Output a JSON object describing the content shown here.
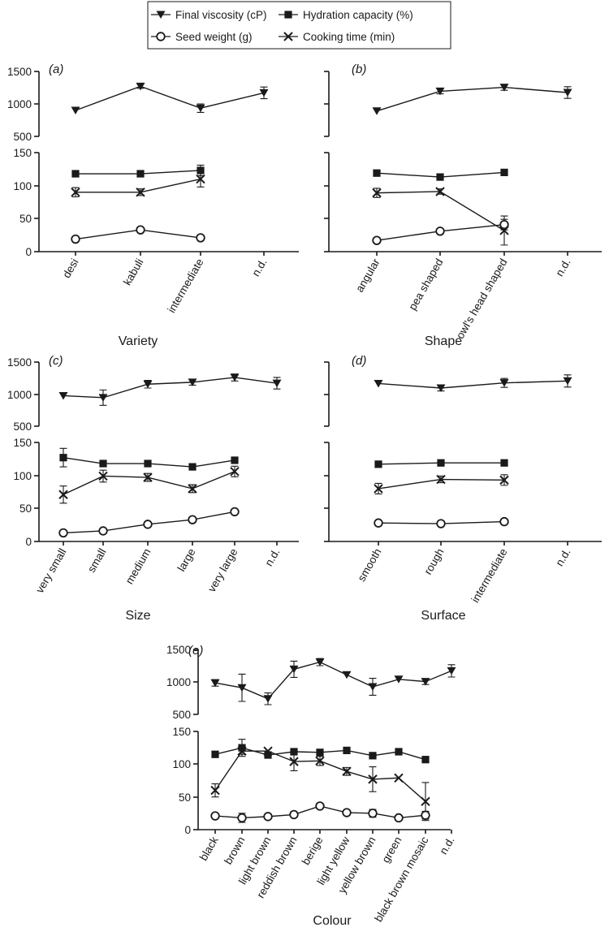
{
  "legend": [
    {
      "marker": "tri-down",
      "label": "Final viscosity (cP)"
    },
    {
      "marker": "square",
      "label": "Hydration capacity (%)"
    },
    {
      "marker": "circle",
      "label": "Seed weight (g)"
    },
    {
      "marker": "cross",
      "label": "Cooking time (min)"
    }
  ],
  "chart_data": [
    {
      "type": "line",
      "panel_label": "(a)",
      "xlabel": "Variety",
      "categories": [
        "desi",
        "kabuli",
        "intermediate",
        "n.d."
      ],
      "top_axis": {
        "ylim": [
          500,
          1500
        ],
        "ticks": [
          "500",
          "1000",
          "1500"
        ]
      },
      "bottom_axis": {
        "ylim": [
          0,
          150
        ],
        "ticks": [
          "0",
          "50",
          "100",
          "150"
        ]
      },
      "series": [
        {
          "name": "Final viscosity (cP)",
          "axis": "top",
          "values": [
            900,
            1270,
            935,
            1170
          ],
          "errors": [
            0,
            30,
            65,
            90
          ]
        },
        {
          "name": "Hydration capacity (%)",
          "axis": "bottom",
          "values": [
            118,
            118,
            123,
            null
          ],
          "errors": [
            0,
            0,
            8,
            0
          ]
        },
        {
          "name": "Cooking time (min)",
          "axis": "bottom",
          "values": [
            90,
            90,
            110,
            null
          ],
          "errors": [
            7,
            5,
            12,
            0
          ]
        },
        {
          "name": "Seed weight (g)",
          "axis": "bottom",
          "values": [
            19,
            33,
            21,
            null
          ],
          "errors": [
            0,
            0,
            0,
            0
          ]
        }
      ]
    },
    {
      "type": "line",
      "panel_label": "(b)",
      "xlabel": "Shape",
      "categories": [
        "angular",
        "pea shaped",
        "owl's head shaped",
        "n.d."
      ],
      "top_axis": {
        "ylim": [
          500,
          1500
        ],
        "ticks": [
          "",
          "",
          ""
        ]
      },
      "bottom_axis": {
        "ylim": [
          0,
          150
        ],
        "ticks": [
          "",
          "",
          "",
          ""
        ]
      },
      "series": [
        {
          "name": "Final viscosity (cP)",
          "axis": "top",
          "values": [
            890,
            1195,
            1255,
            1175
          ],
          "errors": [
            0,
            40,
            45,
            90
          ]
        },
        {
          "name": "Hydration capacity (%)",
          "axis": "bottom",
          "values": [
            119,
            113,
            120,
            null
          ],
          "errors": [
            0,
            0,
            0,
            0
          ]
        },
        {
          "name": "Cooking time (min)",
          "axis": "bottom",
          "values": [
            89,
            91,
            32,
            null
          ],
          "errors": [
            7,
            4,
            22,
            0
          ]
        },
        {
          "name": "Seed weight (g)",
          "axis": "bottom",
          "values": [
            17,
            31,
            41,
            null
          ],
          "errors": [
            0,
            0,
            8,
            0
          ]
        }
      ]
    },
    {
      "type": "line",
      "panel_label": "(c)",
      "xlabel": "Size",
      "categories": [
        "very small",
        "small",
        "medium",
        "large",
        "very large",
        "n.d."
      ],
      "top_axis": {
        "ylim": [
          500,
          1500
        ],
        "ticks": [
          "500",
          "1000",
          "1500"
        ]
      },
      "bottom_axis": {
        "ylim": [
          0,
          150
        ],
        "ticks": [
          "0",
          "50",
          "100",
          "150"
        ]
      },
      "series": [
        {
          "name": "Final viscosity (cP)",
          "axis": "top",
          "values": [
            975,
            945,
            1155,
            1185,
            1260,
            1170
          ],
          "errors": [
            0,
            120,
            60,
            45,
            55,
            90
          ]
        },
        {
          "name": "Hydration capacity (%)",
          "axis": "bottom",
          "values": [
            127,
            118,
            118,
            113,
            123,
            null
          ],
          "errors": [
            14,
            0,
            0,
            0,
            0,
            0
          ]
        },
        {
          "name": "Cooking time (min)",
          "axis": "bottom",
          "values": [
            71,
            99,
            97,
            80,
            106,
            null
          ],
          "errors": [
            13,
            9,
            6,
            6,
            8,
            0
          ]
        },
        {
          "name": "Seed weight (g)",
          "axis": "bottom",
          "values": [
            13,
            16,
            26,
            33,
            45,
            null
          ],
          "errors": [
            0,
            0,
            0,
            0,
            0,
            0
          ]
        }
      ]
    },
    {
      "type": "line",
      "panel_label": "(d)",
      "xlabel": "Surface",
      "categories": [
        "smooth",
        "rough",
        "intermediate",
        "n.d."
      ],
      "top_axis": {
        "ylim": [
          500,
          1500
        ],
        "ticks": [
          "",
          "",
          ""
        ]
      },
      "bottom_axis": {
        "ylim": [
          0,
          150
        ],
        "ticks": [
          "",
          "",
          "",
          ""
        ]
      },
      "series": [
        {
          "name": "Final viscosity (cP)",
          "axis": "top",
          "values": [
            1165,
            1095,
            1175,
            1205
          ],
          "errors": [
            0,
            45,
            70,
            95
          ]
        },
        {
          "name": "Hydration capacity (%)",
          "axis": "bottom",
          "values": [
            117,
            119,
            119,
            null
          ],
          "errors": [
            0,
            0,
            0,
            0
          ]
        },
        {
          "name": "Cooking time (min)",
          "axis": "bottom",
          "values": [
            80,
            94,
            93,
            null
          ],
          "errors": [
            8,
            5,
            8,
            0
          ]
        },
        {
          "name": "Seed weight (g)",
          "axis": "bottom",
          "values": [
            28,
            27,
            30,
            null
          ],
          "errors": [
            0,
            0,
            0,
            0
          ]
        }
      ]
    },
    {
      "type": "line",
      "panel_label": "(e)",
      "xlabel": "Colour",
      "categories": [
        "black",
        "brown",
        "light brown",
        "reddish brown",
        "berige",
        "light yellow",
        "yellow brown",
        "green",
        "black brown mosaic",
        "n.d."
      ],
      "top_axis": {
        "ylim": [
          500,
          1500
        ],
        "ticks": [
          "500",
          "1000",
          "1500"
        ]
      },
      "bottom_axis": {
        "ylim": [
          0,
          150
        ],
        "ticks": [
          "0",
          "50",
          "100",
          "150"
        ]
      },
      "series": [
        {
          "name": "Final viscosity (cP)",
          "axis": "top",
          "values": [
            985,
            910,
            740,
            1195,
            1305,
            1110,
            925,
            1040,
            1005,
            1170
          ],
          "errors": [
            50,
            210,
            90,
            125,
            55,
            0,
            130,
            0,
            45,
            95
          ]
        },
        {
          "name": "Hydration capacity (%)",
          "axis": "bottom",
          "values": [
            115,
            125,
            114,
            119,
            118,
            121,
            113,
            119,
            107,
            null
          ],
          "errors": [
            0,
            13,
            0,
            0,
            0,
            0,
            0,
            0,
            0,
            0
          ]
        },
        {
          "name": "Cooking time (min)",
          "axis": "bottom",
          "values": [
            60,
            120,
            120,
            104,
            105,
            89,
            77,
            79,
            43,
            null
          ],
          "errors": [
            10,
            5,
            0,
            14,
            7,
            6,
            19,
            0,
            29,
            0
          ]
        },
        {
          "name": "Seed weight (g)",
          "axis": "bottom",
          "values": [
            21,
            18,
            20,
            23,
            36,
            26,
            25,
            18,
            22,
            null
          ],
          "errors": [
            0,
            7,
            0,
            0,
            0,
            0,
            6,
            0,
            6,
            0
          ]
        }
      ]
    }
  ]
}
